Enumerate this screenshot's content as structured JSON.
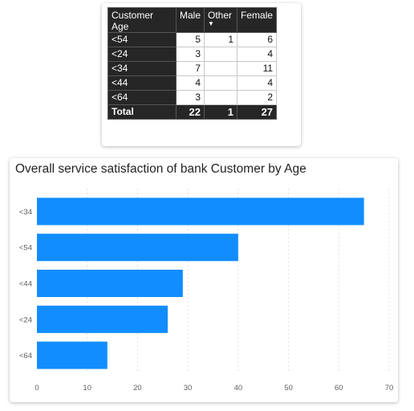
{
  "matrix": {
    "headers": [
      "Customer Age",
      "Male",
      "Other",
      "Female"
    ],
    "rows": [
      {
        "label": "<54",
        "male": "5",
        "other": "1",
        "female": "6"
      },
      {
        "label": "<24",
        "male": "3",
        "other": "",
        "female": "4"
      },
      {
        "label": "<34",
        "male": "7",
        "other": "",
        "female": "11"
      },
      {
        "label": "<44",
        "male": "4",
        "other": "",
        "female": "4"
      },
      {
        "label": "<64",
        "male": "3",
        "other": "",
        "female": "2"
      }
    ],
    "total": {
      "label": "Total",
      "male": "22",
      "other": "1",
      "female": "27"
    }
  },
  "chart_data": {
    "type": "bar",
    "orientation": "horizontal",
    "title": "Overall service satisfaction of bank Customer by Age",
    "categories": [
      "<34",
      "<54",
      "<44",
      "<24",
      "<64"
    ],
    "values": [
      65,
      40,
      29,
      26,
      14
    ],
    "xlim": [
      0,
      70
    ],
    "xticks": [
      0,
      10,
      20,
      30,
      40,
      50,
      60,
      70
    ],
    "xlabel": "",
    "ylabel": "",
    "grid": "vertical dashed",
    "bar_color": "#118DFF"
  },
  "colors": {
    "table_header_bg": "#262626",
    "bar": "#118DFF",
    "axis_text": "#605e5c",
    "grid": "#e1dfdd"
  }
}
